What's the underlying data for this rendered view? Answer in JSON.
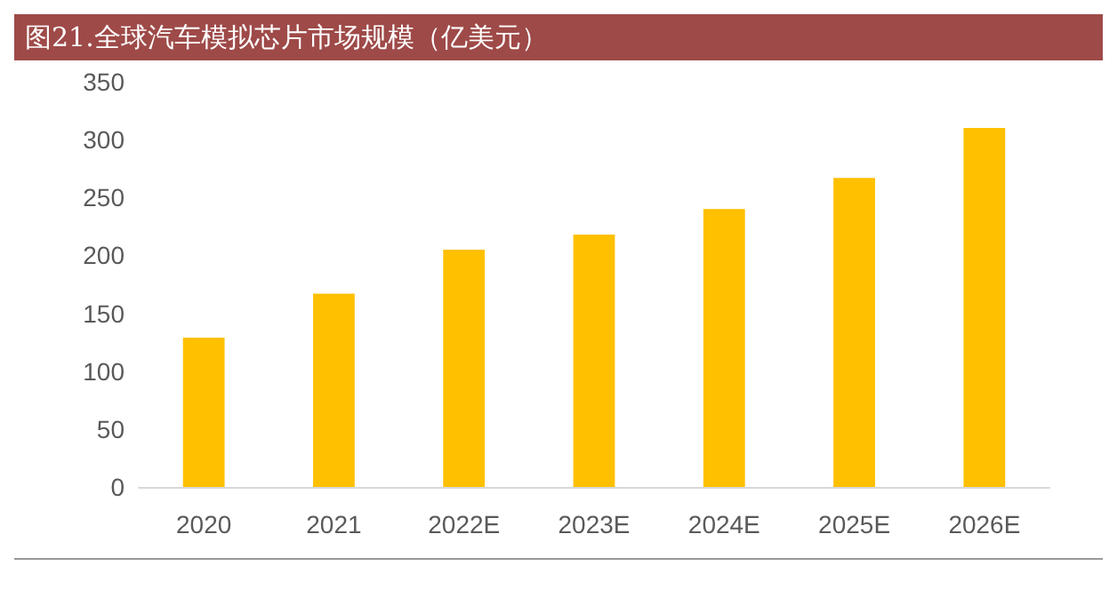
{
  "chart_data": {
    "type": "bar",
    "title": "图21.全球汽车模拟芯片市场规模（亿美元）",
    "categories": [
      "2020",
      "2021",
      "2022E",
      "2023E",
      "2024E",
      "2025E",
      "2026E"
    ],
    "values": [
      129,
      167,
      205,
      218,
      240,
      267,
      310
    ],
    "color": "#ffc000",
    "ylim": [
      0,
      350
    ],
    "yticks": [
      0,
      50,
      100,
      150,
      200,
      250,
      300,
      350
    ]
  }
}
